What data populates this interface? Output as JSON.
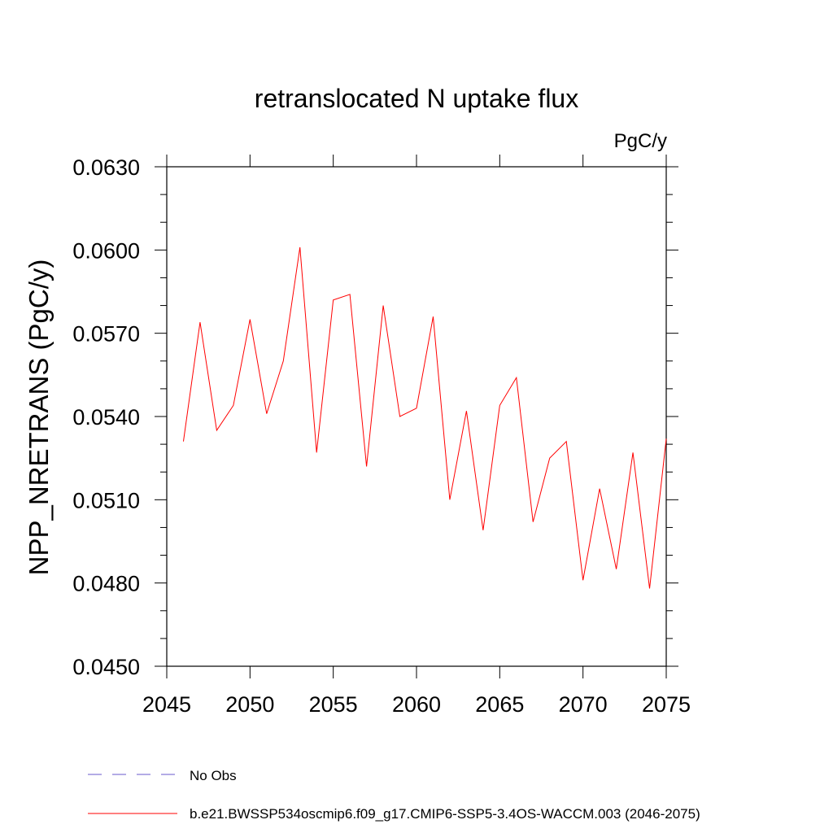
{
  "chart_data": {
    "type": "line",
    "title": "retranslocated N uptake flux",
    "units_label": "PgC/y",
    "ylabel": "NPP_NRETRANS  (PgC/y)",
    "xlabel": "",
    "xlim": [
      2045,
      2075
    ],
    "ylim": [
      0.045,
      0.063
    ],
    "x_ticks": [
      2045,
      2050,
      2055,
      2060,
      2065,
      2070,
      2075
    ],
    "x_tick_labels": [
      "2045",
      "2050",
      "2055",
      "2060",
      "2065",
      "2070",
      "2075"
    ],
    "y_ticks": [
      0.045,
      0.048,
      0.051,
      0.054,
      0.057,
      0.06,
      0.063
    ],
    "y_tick_labels": [
      "0.0450",
      "0.0480",
      "0.0510",
      "0.0540",
      "0.0570",
      "0.0600",
      "0.0630"
    ],
    "grid": false,
    "legend_position": "bottom",
    "series": [
      {
        "name": "b.e21.BWSSP534oscmip6.f09_g17.CMIP6-SSP5-3.4OS-WACCM.003 (2046-2075)",
        "color": "#ff0000",
        "style": "solid",
        "x": [
          2046,
          2047,
          2048,
          2049,
          2050,
          2051,
          2052,
          2053,
          2054,
          2055,
          2056,
          2057,
          2058,
          2059,
          2060,
          2061,
          2062,
          2063,
          2064,
          2065,
          2066,
          2067,
          2068,
          2069,
          2070,
          2071,
          2072,
          2073,
          2074,
          2075
        ],
        "y": [
          0.0531,
          0.0574,
          0.0535,
          0.0544,
          0.0575,
          0.0541,
          0.056,
          0.0601,
          0.0527,
          0.0582,
          0.0584,
          0.0522,
          0.058,
          0.054,
          0.0543,
          0.0576,
          0.051,
          0.0542,
          0.0499,
          0.0544,
          0.0554,
          0.0502,
          0.0525,
          0.0531,
          0.0481,
          0.0514,
          0.0485,
          0.0527,
          0.0478,
          0.0532
        ]
      },
      {
        "name": "No Obs",
        "color": "#6a5acd",
        "style": "dashed",
        "x": [],
        "y": []
      }
    ]
  }
}
